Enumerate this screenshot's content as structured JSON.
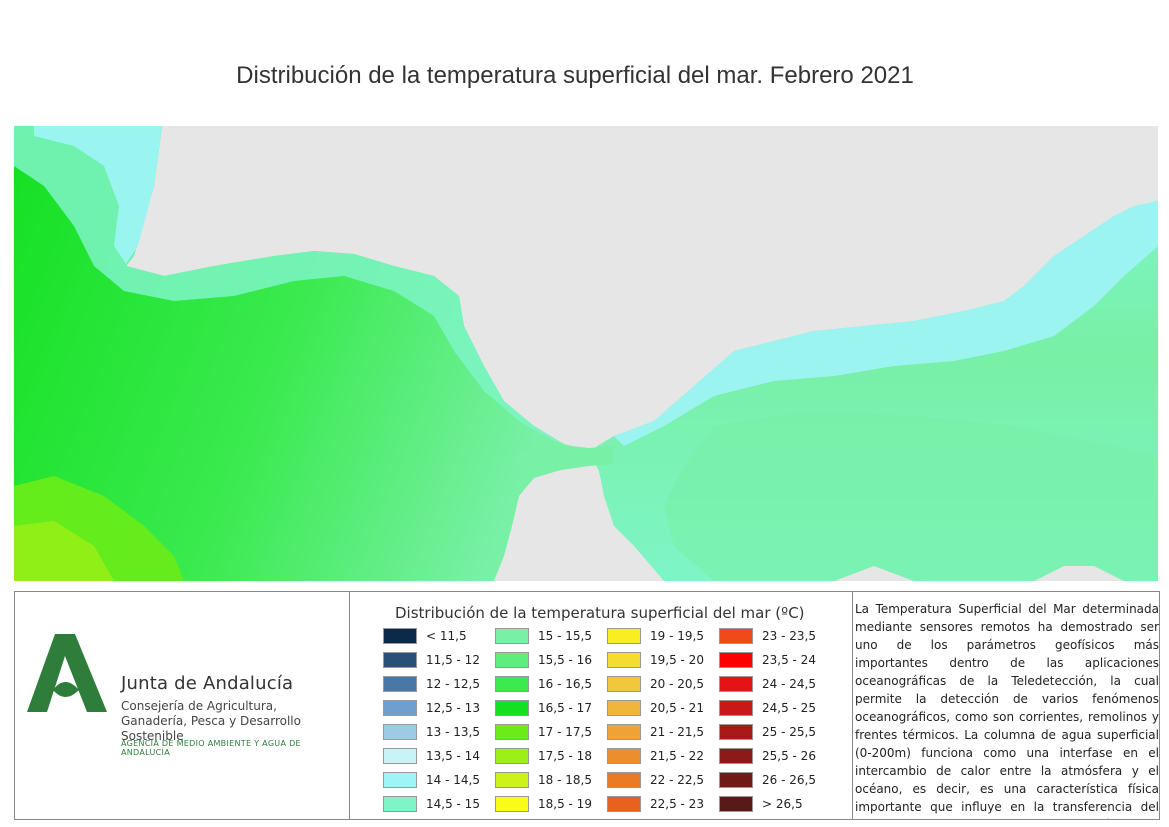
{
  "title": "Distribución de la temperatura superficial del mar. Febrero 2021",
  "org": {
    "name": "Junta de Andalucía",
    "department": "Consejería de Agricultura, Ganadería, Pesca y Desarrollo Sostenible",
    "agency": "AGENCIA DE MEDIO AMBIENTE Y AGUA DE ANDALUCÍA",
    "logo_color": "#2e7d3a"
  },
  "legend": {
    "title": "Distribución de la temperatura superficial del mar (ºC)",
    "items": [
      {
        "label": "< 11,5",
        "color": "#0b2a4a"
      },
      {
        "label": "11,5 - 12",
        "color": "#2a5078"
      },
      {
        "label": "12 - 12,5",
        "color": "#4a78a6"
      },
      {
        "label": "12,5 - 13",
        "color": "#6f9fcf"
      },
      {
        "label": "13 - 13,5",
        "color": "#9ccbe4"
      },
      {
        "label": "13,5 - 14",
        "color": "#c8f4f8"
      },
      {
        "label": "14 - 14,5",
        "color": "#9ef4f7"
      },
      {
        "label": "14,5 - 15",
        "color": "#7ef5c6"
      },
      {
        "label": "15 - 15,5",
        "color": "#78f0a6"
      },
      {
        "label": "15,5 - 16",
        "color": "#5fee7c"
      },
      {
        "label": "16 - 16,5",
        "color": "#3aea4e"
      },
      {
        "label": "16,5 - 17",
        "color": "#14e022"
      },
      {
        "label": "17 - 17,5",
        "color": "#6bec18"
      },
      {
        "label": "17,5 - 18",
        "color": "#9cf018"
      },
      {
        "label": "18 - 18,5",
        "color": "#cdf21a"
      },
      {
        "label": "18,5 - 19",
        "color": "#fbfb18"
      },
      {
        "label": "19 - 19,5",
        "color": "#f8ee22"
      },
      {
        "label": "19,5 - 20",
        "color": "#f4dc30"
      },
      {
        "label": "20 - 20,5",
        "color": "#f2c83a"
      },
      {
        "label": "20,5 - 21",
        "color": "#f0b63c"
      },
      {
        "label": "21 - 21,5",
        "color": "#eea238"
      },
      {
        "label": "21,5 - 22",
        "color": "#ec8e2e"
      },
      {
        "label": "22 - 22,5",
        "color": "#ea7a26"
      },
      {
        "label": "22,5 - 23",
        "color": "#e8621e"
      },
      {
        "label": "23 - 23,5",
        "color": "#f04a1a"
      },
      {
        "label": "23,5 - 24",
        "color": "#ff0000"
      },
      {
        "label": "24 - 24,5",
        "color": "#e41414"
      },
      {
        "label": "24,5 - 25",
        "color": "#c81818"
      },
      {
        "label": "25 - 25,5",
        "color": "#a81a18"
      },
      {
        "label": "25,5 - 26",
        "color": "#8c1a18"
      },
      {
        "label": "26 - 26,5",
        "color": "#701a18"
      },
      {
        "label": "> 26,5",
        "color": "#581a18"
      }
    ]
  },
  "description": "La Temperatura Superficial del Mar determinada mediante sensores remotos ha demostrado ser uno de los parámetros geofísicos más importantes dentro de las aplicaciones oceanográficas de la Teledetección, la cual permite la detección de varios fenómenos oceanográficos, como son corrientes, remolinos y frentes térmicos. La columna de agua superficial (0-200m) funciona como una interfase en el intercambio de calor entre la atmósfera y el océano, es decir, es una característica física importante que influye en la transferencia del vapor de agua y de los gases entre el océano y la atmósfera.",
  "map": {
    "land_color": "#e6e6e6",
    "coast_color": "#9ef4f7"
  }
}
